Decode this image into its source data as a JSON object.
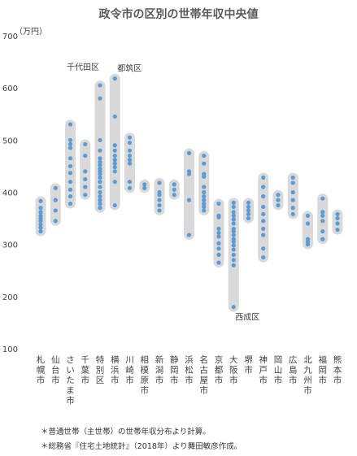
{
  "chart_data": {
    "type": "scatter",
    "title": "政令市の区別の世帯年収中央値",
    "ylabel": "（万円）",
    "ylim": [
      100,
      700
    ],
    "yticks": [
      100,
      200,
      300,
      400,
      500,
      600,
      700
    ],
    "grid": false,
    "categories": [
      "札幌市",
      "仙台市",
      "さいたま市",
      "千葉市",
      "特別区",
      "横浜市",
      "川崎市",
      "相模原市",
      "新潟市",
      "静岡市",
      "浜松市",
      "名古屋市",
      "京都市",
      "大阪市",
      "堺市",
      "神戸市",
      "岡山市",
      "広島市",
      "北九州市",
      "福岡市",
      "熊本市"
    ],
    "series": [
      {
        "category": "札幌市",
        "values": [
          325,
          332,
          338,
          345,
          350,
          355,
          362,
          370,
          383
        ]
      },
      {
        "category": "仙台市",
        "values": [
          345,
          365,
          385,
          408
        ]
      },
      {
        "category": "さいたま市",
        "values": [
          378,
          392,
          405,
          420,
          437,
          450,
          465,
          485,
          492,
          500,
          530
        ]
      },
      {
        "category": "千葉市",
        "values": [
          395,
          410,
          425,
          440,
          470,
          492
        ]
      },
      {
        "category": "特別区",
        "values": [
          370,
          378,
          385,
          392,
          400,
          410,
          420,
          428,
          435,
          440,
          445,
          452,
          458,
          465,
          480,
          500,
          580,
          605
        ]
      },
      {
        "category": "横浜市",
        "values": [
          375,
          420,
          440,
          448,
          455,
          462,
          470,
          480,
          490,
          545,
          618
        ]
      },
      {
        "category": "川崎市",
        "values": [
          408,
          420,
          455,
          462,
          470,
          480,
          495,
          505
        ]
      },
      {
        "category": "相模原市",
        "values": [
          408,
          415
        ]
      },
      {
        "category": "新潟市",
        "values": [
          365,
          375,
          385,
          395,
          400,
          418
        ]
      },
      {
        "category": "静岡市",
        "values": [
          395,
          405,
          415
        ]
      },
      {
        "category": "浜松市",
        "values": [
          318,
          385,
          435,
          440,
          475
        ]
      },
      {
        "category": "名古屋市",
        "values": [
          365,
          372,
          378,
          385,
          392,
          400,
          410,
          430,
          435,
          455,
          470
        ]
      },
      {
        "category": "京都市",
        "values": [
          265,
          280,
          292,
          302,
          315,
          322,
          330,
          352,
          355,
          378
        ]
      },
      {
        "category": "大阪市",
        "values": [
          180,
          260,
          270,
          280,
          290,
          298,
          305,
          310,
          318,
          325,
          330,
          340,
          348,
          355,
          362,
          372,
          380
        ]
      },
      {
        "category": "堺市",
        "values": [
          350,
          358,
          365,
          372,
          380
        ]
      },
      {
        "category": "神戸市",
        "values": [
          275,
          292,
          318,
          330,
          345,
          358,
          372,
          392,
          410,
          428
        ]
      },
      {
        "category": "岡山市",
        "values": [
          375,
          385,
          395
        ]
      },
      {
        "category": "広島市",
        "values": [
          358,
          370,
          385,
          400,
          418,
          428
        ]
      },
      {
        "category": "北九州市",
        "values": [
          300,
          305,
          310,
          340,
          355
        ]
      },
      {
        "category": "福岡市",
        "values": [
          310,
          325,
          345,
          355,
          362,
          388
        ]
      },
      {
        "category": "熊本市",
        "values": [
          328,
          340,
          350,
          358
        ]
      }
    ],
    "annotations": [
      {
        "text": "千代田区",
        "category": "特別区",
        "value": 605
      },
      {
        "text": "都筑区",
        "category": "横浜市",
        "value": 618
      },
      {
        "text": "西成区",
        "category": "大阪市",
        "value": 180
      }
    ],
    "colors": {
      "dot": "#5b9bd5",
      "range_band": "#d9d9d9",
      "text": "#404040"
    }
  },
  "notes": [
    "＊普通世帯（主世帯）の世帯年収分布より計算。",
    "＊総務省『住宅土地統計』（2018年）より舞田敏彦作成。"
  ]
}
